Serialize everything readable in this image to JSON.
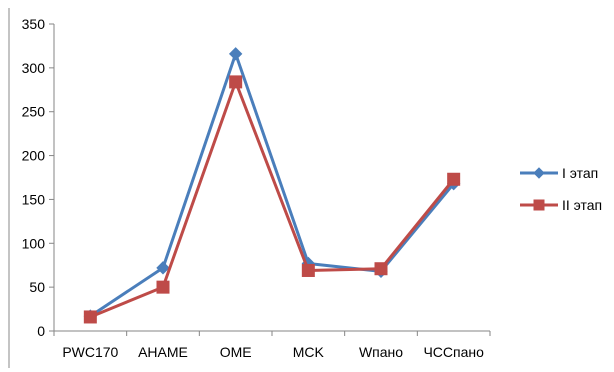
{
  "chart_data": {
    "type": "line",
    "title": "",
    "xlabel": "",
    "ylabel": "",
    "categories": [
      "PWC170",
      "AHAME",
      "OME",
      "MCK",
      "Wпано",
      "ЧССпано"
    ],
    "ylim": [
      0,
      350
    ],
    "yticks": [
      0,
      50,
      100,
      150,
      200,
      250,
      300,
      350
    ],
    "grid": false,
    "legend": "right",
    "series": [
      {
        "name": "I этап",
        "values": [
          17,
          72,
          316,
          77,
          68,
          168
        ],
        "color": "#4a7ebb",
        "marker": "diamond"
      },
      {
        "name": "II этап",
        "values": [
          16,
          50,
          284,
          69,
          71,
          173
        ],
        "color": "#be4b48",
        "marker": "square"
      }
    ]
  }
}
